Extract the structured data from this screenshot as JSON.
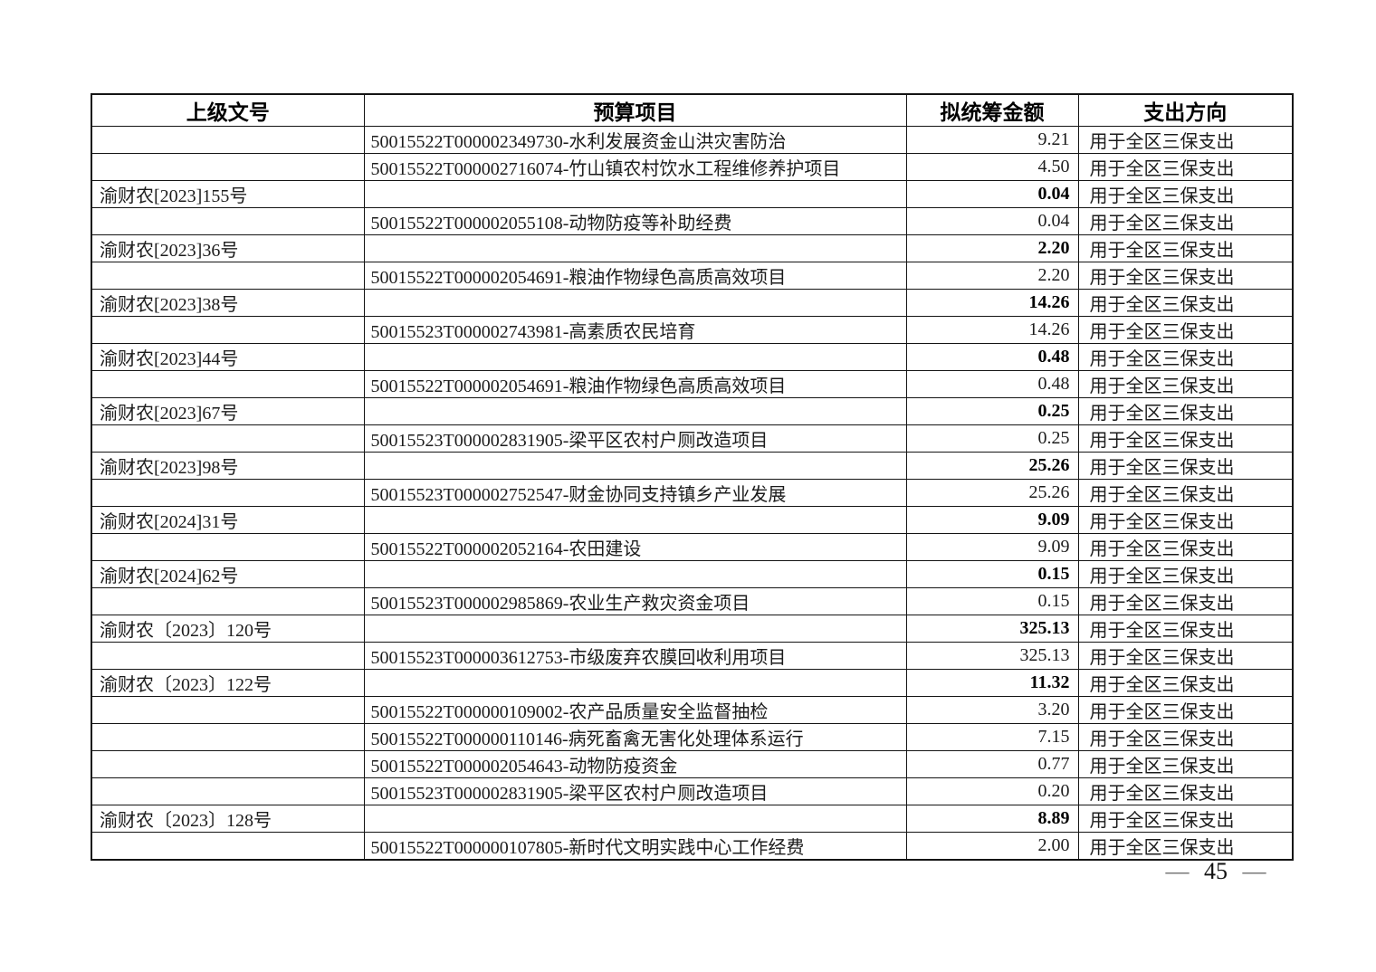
{
  "page": {
    "footer": {
      "left_dash": "—",
      "page_number": "45",
      "right_dash": "—"
    }
  },
  "table": {
    "headers": [
      "上级文号",
      "预算项目",
      "拟统筹金额",
      "支出方向"
    ],
    "rows": [
      {
        "type": "detail",
        "doc": "",
        "project": "50015522T000002349730-水利发展资金山洪灾害防治",
        "amount": "9.21",
        "direction": "用于全区三保支出"
      },
      {
        "type": "detail",
        "doc": "",
        "project": "50015522T000002716074-竹山镇农村饮水工程维修养护项目",
        "amount": "4.50",
        "direction": "用于全区三保支出"
      },
      {
        "type": "summary",
        "doc": "渝财农[2023]155号",
        "project": "",
        "amount": "0.04",
        "direction": "用于全区三保支出"
      },
      {
        "type": "detail",
        "doc": "",
        "project": "50015522T000002055108-动物防疫等补助经费",
        "amount": "0.04",
        "direction": "用于全区三保支出"
      },
      {
        "type": "summary",
        "doc": "渝财农[2023]36号",
        "project": "",
        "amount": "2.20",
        "direction": "用于全区三保支出"
      },
      {
        "type": "detail",
        "doc": "",
        "project": "50015522T000002054691-粮油作物绿色高质高效项目",
        "amount": "2.20",
        "direction": "用于全区三保支出"
      },
      {
        "type": "summary",
        "doc": "渝财农[2023]38号",
        "project": "",
        "amount": "14.26",
        "direction": "用于全区三保支出"
      },
      {
        "type": "detail",
        "doc": "",
        "project": "50015523T000002743981-高素质农民培育",
        "amount": "14.26",
        "direction": "用于全区三保支出"
      },
      {
        "type": "summary",
        "doc": "渝财农[2023]44号",
        "project": "",
        "amount": "0.48",
        "direction": "用于全区三保支出"
      },
      {
        "type": "detail",
        "doc": "",
        "project": "50015522T000002054691-粮油作物绿色高质高效项目",
        "amount": "0.48",
        "direction": "用于全区三保支出"
      },
      {
        "type": "summary",
        "doc": "渝财农[2023]67号",
        "project": "",
        "amount": "0.25",
        "direction": "用于全区三保支出"
      },
      {
        "type": "detail",
        "doc": "",
        "project": "50015523T000002831905-梁平区农村户厕改造项目",
        "amount": "0.25",
        "direction": "用于全区三保支出"
      },
      {
        "type": "summary",
        "doc": "渝财农[2023]98号",
        "project": "",
        "amount": "25.26",
        "direction": "用于全区三保支出"
      },
      {
        "type": "detail",
        "doc": "",
        "project": "50015523T000002752547-财金协同支持镇乡产业发展",
        "amount": "25.26",
        "direction": "用于全区三保支出"
      },
      {
        "type": "summary",
        "doc": "渝财农[2024]31号",
        "project": "",
        "amount": "9.09",
        "direction": "用于全区三保支出"
      },
      {
        "type": "detail",
        "doc": "",
        "project": "50015522T000002052164-农田建设",
        "amount": "9.09",
        "direction": "用于全区三保支出"
      },
      {
        "type": "summary",
        "doc": "渝财农[2024]62号",
        "project": "",
        "amount": "0.15",
        "direction": "用于全区三保支出"
      },
      {
        "type": "detail",
        "doc": "",
        "project": "50015523T000002985869-农业生产救灾资金项目",
        "amount": "0.15",
        "direction": "用于全区三保支出"
      },
      {
        "type": "summary",
        "doc": "渝财农〔2023〕120号",
        "project": "",
        "amount": "325.13",
        "direction": "用于全区三保支出"
      },
      {
        "type": "detail",
        "doc": "",
        "project": "50015523T000003612753-市级废弃农膜回收利用项目",
        "amount": "325.13",
        "direction": "用于全区三保支出"
      },
      {
        "type": "summary",
        "doc": "渝财农〔2023〕122号",
        "project": "",
        "amount": "11.32",
        "direction": "用于全区三保支出"
      },
      {
        "type": "detail",
        "doc": "",
        "project": "50015522T000000109002-农产品质量安全监督抽检",
        "amount": "3.20",
        "direction": "用于全区三保支出"
      },
      {
        "type": "detail",
        "doc": "",
        "project": "50015522T000000110146-病死畜禽无害化处理体系运行",
        "amount": "7.15",
        "direction": "用于全区三保支出"
      },
      {
        "type": "detail",
        "doc": "",
        "project": "50015522T000002054643-动物防疫资金",
        "amount": "0.77",
        "direction": "用于全区三保支出"
      },
      {
        "type": "detail",
        "doc": "",
        "project": "50015523T000002831905-梁平区农村户厕改造项目",
        "amount": "0.20",
        "direction": "用于全区三保支出"
      },
      {
        "type": "summary",
        "doc": "渝财农〔2023〕128号",
        "project": "",
        "amount": "8.89",
        "direction": "用于全区三保支出"
      },
      {
        "type": "detail",
        "doc": "",
        "project": "50015522T000000107805-新时代文明实践中心工作经费",
        "amount": "2.00",
        "direction": "用于全区三保支出"
      }
    ]
  }
}
